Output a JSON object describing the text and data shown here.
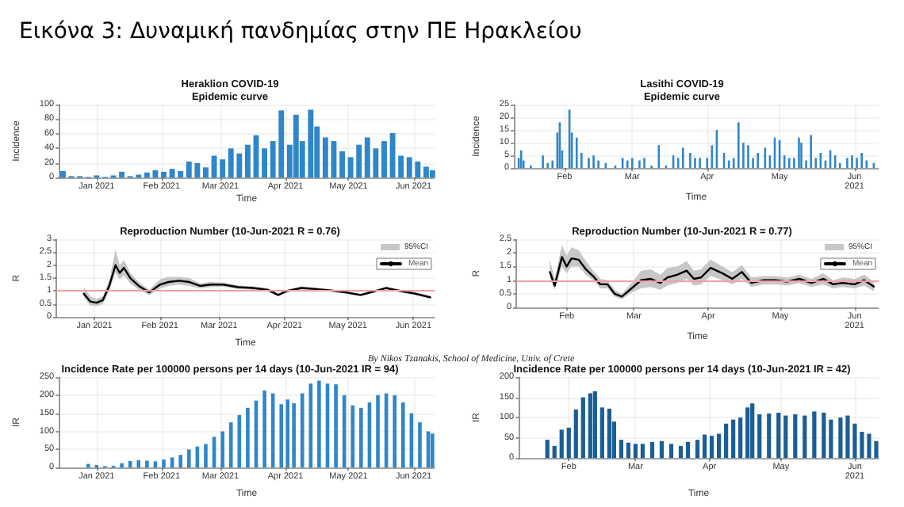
{
  "chart_data": [
    {
      "type": "other",
      "title": "Εικόνα 3: Δυναμική πανδημίας στην ΠΕ Ηρακλείου",
      "annotations": [
        "By Nikos Tzanakis, School of Medicine, Univ. of Crete"
      ]
    },
    {
      "type": "bar",
      "title": "Heraklion COVID-19",
      "subtitle": "Epidemic curve",
      "xlabel": "Time",
      "ylabel": "Incidence",
      "grid": true,
      "color": "#2f86c8",
      "x": [
        "2020-12-16",
        "2020-12-20",
        "2020-12-24",
        "2020-12-28",
        "2021-01-01",
        "2021-01-05",
        "2021-01-09",
        "2021-01-13",
        "2021-01-17",
        "2021-01-21",
        "2021-01-25",
        "2021-01-29",
        "2021-02-02",
        "2021-02-06",
        "2021-02-10",
        "2021-02-14",
        "2021-02-18",
        "2021-02-22",
        "2021-02-26",
        "2021-03-02",
        "2021-03-06",
        "2021-03-10",
        "2021-03-14",
        "2021-03-18",
        "2021-03-22",
        "2021-03-26",
        "2021-03-30",
        "2021-04-03",
        "2021-04-06",
        "2021-04-09",
        "2021-04-13",
        "2021-04-16",
        "2021-04-20",
        "2021-04-24",
        "2021-04-28",
        "2021-05-02",
        "2021-05-06",
        "2021-05-10",
        "2021-05-14",
        "2021-05-18",
        "2021-05-22",
        "2021-05-26",
        "2021-05-30",
        "2021-06-03",
        "2021-06-07",
        "2021-06-10"
      ],
      "values": [
        9,
        2,
        2,
        1,
        3,
        1,
        3,
        8,
        2,
        4,
        7,
        10,
        8,
        12,
        9,
        22,
        20,
        14,
        30,
        25,
        40,
        33,
        45,
        58,
        40,
        50,
        92,
        45,
        86,
        50,
        93,
        70,
        55,
        50,
        36,
        28,
        45,
        55,
        40,
        50,
        61,
        30,
        28,
        22,
        15,
        10
      ],
      "xlim": [
        "2020-12-14",
        "2021-06-11"
      ],
      "xticks": [
        {
          "value": "2021-01-01",
          "label": "Jan 2021"
        },
        {
          "value": "2021-02-01",
          "label": "Feb 2021"
        },
        {
          "value": "2021-03-01",
          "label": "Mar 2021"
        },
        {
          "value": "2021-04-01",
          "label": "Apr 2021"
        },
        {
          "value": "2021-05-01",
          "label": "May 2021"
        },
        {
          "value": "2021-06-01",
          "label": "Jun 2021"
        }
      ],
      "ylim": [
        0,
        100
      ],
      "yticks": [
        0,
        20,
        40,
        60,
        80,
        100
      ]
    },
    {
      "type": "bar",
      "title": "Lasithi COVID-19",
      "subtitle": "Epidemic curve",
      "xlabel": "Time",
      "ylabel": "Incidence",
      "grid": true,
      "color": "#2f86c8",
      "x": [
        "2021-01-13",
        "2021-01-14",
        "2021-01-15",
        "2021-01-18",
        "2021-01-23",
        "2021-01-25",
        "2021-01-27",
        "2021-01-29",
        "2021-01-30",
        "2021-01-31",
        "2021-02-03",
        "2021-02-04",
        "2021-02-06",
        "2021-02-08",
        "2021-02-11",
        "2021-02-13",
        "2021-02-15",
        "2021-02-18",
        "2021-02-22",
        "2021-02-25",
        "2021-02-27",
        "2021-03-01",
        "2021-03-04",
        "2021-03-06",
        "2021-03-09",
        "2021-03-12",
        "2021-03-15",
        "2021-03-18",
        "2021-03-20",
        "2021-03-22",
        "2021-03-25",
        "2021-03-27",
        "2021-03-29",
        "2021-04-01",
        "2021-04-03",
        "2021-04-05",
        "2021-04-08",
        "2021-04-10",
        "2021-04-12",
        "2021-04-14",
        "2021-04-16",
        "2021-04-18",
        "2021-04-20",
        "2021-04-22",
        "2021-04-25",
        "2021-04-27",
        "2021-04-29",
        "2021-05-01",
        "2021-05-03",
        "2021-05-05",
        "2021-05-07",
        "2021-05-09",
        "2021-05-10",
        "2021-05-12",
        "2021-05-14",
        "2021-05-16",
        "2021-05-18",
        "2021-05-20",
        "2021-05-22",
        "2021-05-24",
        "2021-05-26",
        "2021-05-29",
        "2021-05-31",
        "2021-06-02",
        "2021-06-04",
        "2021-06-06",
        "2021-06-09"
      ],
      "values": [
        4,
        7,
        3,
        1,
        5,
        2,
        3,
        14,
        18,
        7,
        23,
        14,
        12,
        6,
        4,
        5,
        3,
        2,
        1,
        4,
        3,
        4,
        3,
        4,
        1,
        9,
        1,
        5,
        4,
        8,
        6,
        4,
        4,
        4,
        9,
        15,
        6,
        3,
        4,
        18,
        10,
        9,
        4,
        6,
        8,
        5,
        12,
        11,
        5,
        4,
        4,
        12,
        10,
        3,
        13,
        4,
        6,
        3,
        7,
        5,
        2,
        4,
        5,
        4,
        6,
        3,
        2
      ],
      "xlim": [
        "2021-01-11",
        "2021-06-11"
      ],
      "xticks": [
        {
          "value": "2021-02-01",
          "label": "Feb"
        },
        {
          "value": "2021-03-01",
          "label": "Mar"
        },
        {
          "value": "2021-04-01",
          "label": "Apr"
        },
        {
          "value": "2021-05-01",
          "label": "May"
        },
        {
          "value": "2021-06-01",
          "label": "Jun\n2021"
        }
      ],
      "ylim": [
        0,
        25
      ],
      "yticks": [
        0,
        5,
        10,
        15,
        20,
        25
      ]
    },
    {
      "type": "line",
      "title": "Reproduction Number (10-Jun-2021 R = 0.76)",
      "annotations": [
        "95%CI"
      ],
      "xlabel": "Time",
      "ylabel": "R",
      "grid": true,
      "legend": "top right",
      "marker": "none",
      "line_style": "solid",
      "x": [
        "2020-12-27",
        "2020-12-30",
        "2021-01-02",
        "2021-01-05",
        "2021-01-08",
        "2021-01-11",
        "2021-01-13",
        "2021-01-15",
        "2021-01-18",
        "2021-01-22",
        "2021-01-27",
        "2021-02-01",
        "2021-02-05",
        "2021-02-10",
        "2021-02-15",
        "2021-02-20",
        "2021-02-25",
        "2021-03-03",
        "2021-03-10",
        "2021-03-17",
        "2021-03-24",
        "2021-03-29",
        "2021-04-02",
        "2021-04-09",
        "2021-04-16",
        "2021-04-23",
        "2021-04-30",
        "2021-05-07",
        "2021-05-14",
        "2021-05-19",
        "2021-05-26",
        "2021-06-02",
        "2021-06-09"
      ],
      "series": [
        {
          "name": "Mean",
          "type": "line",
          "color": "#000000",
          "values": [
            0.9,
            0.6,
            0.55,
            0.65,
            1.2,
            2.0,
            1.7,
            1.9,
            1.5,
            1.2,
            0.95,
            1.25,
            1.35,
            1.4,
            1.35,
            1.2,
            1.25,
            1.25,
            1.15,
            1.12,
            1.05,
            0.85,
            1.0,
            1.12,
            1.08,
            1.02,
            0.95,
            0.85,
            1.0,
            1.12,
            1.0,
            0.9,
            0.76
          ],
          "lower": [
            0.75,
            0.45,
            0.42,
            0.5,
            1.0,
            1.7,
            1.45,
            1.6,
            1.3,
            1.05,
            0.85,
            1.1,
            1.2,
            1.25,
            1.2,
            1.1,
            1.15,
            1.17,
            1.08,
            1.05,
            0.98,
            0.8,
            0.94,
            1.06,
            1.03,
            0.97,
            0.9,
            0.8,
            0.96,
            1.07,
            0.95,
            0.85,
            0.7
          ],
          "upper": [
            1.15,
            0.8,
            0.7,
            0.8,
            1.4,
            2.6,
            2.0,
            2.2,
            1.7,
            1.35,
            1.05,
            1.45,
            1.55,
            1.55,
            1.5,
            1.3,
            1.35,
            1.33,
            1.22,
            1.18,
            1.12,
            0.9,
            1.06,
            1.18,
            1.13,
            1.07,
            1.0,
            0.9,
            1.05,
            1.17,
            1.05,
            0.95,
            0.82
          ]
        }
      ],
      "ref_lines": [
        {
          "axis": "y",
          "value": 1,
          "color": "#f4a0a0"
        }
      ],
      "xlim": [
        "2020-12-14",
        "2021-06-11"
      ],
      "xticks": [
        {
          "value": "2021-01-01",
          "label": "Jan 2021"
        },
        {
          "value": "2021-02-01",
          "label": "Feb 2021"
        },
        {
          "value": "2021-03-01",
          "label": "Mar 2021"
        },
        {
          "value": "2021-04-01",
          "label": "Apr 2021"
        },
        {
          "value": "2021-05-01",
          "label": "May 2021"
        },
        {
          "value": "2021-06-01",
          "label": "Jun 2021"
        }
      ],
      "ylim": [
        0,
        3
      ],
      "yticks": [
        0,
        0.5,
        1,
        1.5,
        2,
        2.5,
        3
      ]
    },
    {
      "type": "line",
      "title": "Reproduction Number (10-Jun-2021 R = 0.77)",
      "annotations": [
        "95%CI"
      ],
      "xlabel": "Time",
      "ylabel": "R",
      "grid": true,
      "legend": "top right",
      "marker": "none",
      "line_style": "solid",
      "x": [
        "2021-01-25",
        "2021-01-27",
        "2021-01-30",
        "2021-02-01",
        "2021-02-03",
        "2021-02-06",
        "2021-02-09",
        "2021-02-12",
        "2021-02-15",
        "2021-02-18",
        "2021-02-21",
        "2021-02-24",
        "2021-02-28",
        "2021-03-04",
        "2021-03-08",
        "2021-03-12",
        "2021-03-15",
        "2021-03-19",
        "2021-03-23",
        "2021-03-26",
        "2021-03-29",
        "2021-04-02",
        "2021-04-07",
        "2021-04-11",
        "2021-04-15",
        "2021-04-19",
        "2021-04-24",
        "2021-04-29",
        "2021-05-04",
        "2021-05-09",
        "2021-05-14",
        "2021-05-19",
        "2021-05-23",
        "2021-05-27",
        "2021-06-01",
        "2021-06-05",
        "2021-06-09"
      ],
      "series": [
        {
          "name": "Mean",
          "type": "line",
          "color": "#000000",
          "values": [
            1.3,
            0.8,
            1.85,
            1.5,
            1.8,
            1.75,
            1.4,
            1.15,
            0.85,
            0.85,
            0.5,
            0.4,
            0.7,
            1.0,
            1.05,
            0.9,
            1.1,
            1.2,
            1.35,
            1.05,
            1.1,
            1.45,
            1.25,
            1.05,
            1.3,
            0.9,
            1.0,
            1.0,
            0.95,
            1.05,
            0.9,
            1.05,
            0.85,
            0.9,
            0.85,
            1.0,
            0.77
          ],
          "lower": [
            1.1,
            0.65,
            1.5,
            1.25,
            1.5,
            1.5,
            1.2,
            1.0,
            0.7,
            0.7,
            0.4,
            0.3,
            0.55,
            0.7,
            0.75,
            0.65,
            0.8,
            0.9,
            1.05,
            0.8,
            0.85,
            1.15,
            1.0,
            0.85,
            1.05,
            0.75,
            0.85,
            0.85,
            0.8,
            0.9,
            0.75,
            0.85,
            0.7,
            0.75,
            0.7,
            0.8,
            0.6
          ],
          "upper": [
            1.75,
            1.05,
            2.3,
            1.9,
            2.2,
            2.1,
            1.7,
            1.35,
            1.05,
            1.0,
            0.65,
            0.5,
            0.9,
            1.35,
            1.4,
            1.2,
            1.45,
            1.5,
            1.7,
            1.35,
            1.4,
            1.75,
            1.5,
            1.3,
            1.55,
            1.1,
            1.15,
            1.15,
            1.1,
            1.2,
            1.05,
            1.25,
            1.0,
            1.1,
            1.05,
            1.2,
            0.95
          ]
        }
      ],
      "ref_lines": [
        {
          "axis": "y",
          "value": 1,
          "color": "#f4a0a0"
        }
      ],
      "xlim": [
        "2021-01-11",
        "2021-06-11"
      ],
      "xticks": [
        {
          "value": "2021-02-01",
          "label": "Feb"
        },
        {
          "value": "2021-03-01",
          "label": "Mar"
        },
        {
          "value": "2021-04-01",
          "label": "Apr"
        },
        {
          "value": "2021-05-01",
          "label": "May"
        },
        {
          "value": "2021-06-01",
          "label": "Jun\n2021"
        }
      ],
      "ylim": [
        0,
        2.5
      ],
      "yticks": [
        0,
        0.5,
        1,
        1.5,
        2,
        2.5
      ]
    },
    {
      "type": "bar",
      "title": "Incidence Rate per 100000 persons per 14 days (10-Jun-2021 IR = 94)",
      "xlabel": "Time",
      "ylabel": "IR",
      "grid": true,
      "color": "#2f86c8",
      "x": [
        "2020-12-28",
        "2021-01-01",
        "2021-01-05",
        "2021-01-09",
        "2021-01-13",
        "2021-01-17",
        "2021-01-21",
        "2021-01-25",
        "2021-01-29",
        "2021-02-02",
        "2021-02-06",
        "2021-02-10",
        "2021-02-14",
        "2021-02-18",
        "2021-02-22",
        "2021-02-26",
        "2021-03-02",
        "2021-03-06",
        "2021-03-10",
        "2021-03-14",
        "2021-03-18",
        "2021-03-22",
        "2021-03-26",
        "2021-03-30",
        "2021-04-02",
        "2021-04-05",
        "2021-04-09",
        "2021-04-13",
        "2021-04-17",
        "2021-04-21",
        "2021-04-25",
        "2021-04-29",
        "2021-05-03",
        "2021-05-07",
        "2021-05-11",
        "2021-05-15",
        "2021-05-19",
        "2021-05-23",
        "2021-05-27",
        "2021-05-31",
        "2021-06-04",
        "2021-06-08",
        "2021-06-10"
      ],
      "values": [
        10,
        7,
        4,
        5,
        12,
        18,
        20,
        19,
        17,
        22,
        28,
        35,
        50,
        58,
        65,
        85,
        100,
        125,
        145,
        165,
        185,
        213,
        205,
        175,
        188,
        178,
        205,
        232,
        240,
        232,
        230,
        200,
        172,
        165,
        180,
        200,
        205,
        200,
        180,
        150,
        125,
        100,
        94
      ],
      "xlim": [
        "2020-12-14",
        "2021-06-11"
      ],
      "xticks": [
        {
          "value": "2021-01-01",
          "label": "Jan 2021"
        },
        {
          "value": "2021-02-01",
          "label": "Feb 2021"
        },
        {
          "value": "2021-03-01",
          "label": "Mar 2021"
        },
        {
          "value": "2021-04-01",
          "label": "Apr 2021"
        },
        {
          "value": "2021-05-01",
          "label": "May 2021"
        },
        {
          "value": "2021-06-01",
          "label": "Jun 2021"
        }
      ],
      "ylim": [
        0,
        250
      ],
      "yticks": [
        0,
        50,
        100,
        150,
        200,
        250
      ]
    },
    {
      "type": "bar",
      "title": "Incidence Rate per 100000 persons per 14 days (10-Jun-2021 IR = 42)",
      "xlabel": "Time",
      "ylabel": "IR",
      "grid": true,
      "color": "#1b5e96",
      "x": [
        "2021-01-23",
        "2021-01-26",
        "2021-01-29",
        "2021-02-01",
        "2021-02-04",
        "2021-02-07",
        "2021-02-10",
        "2021-02-12",
        "2021-02-15",
        "2021-02-18",
        "2021-02-20",
        "2021-02-23",
        "2021-02-26",
        "2021-03-01",
        "2021-03-04",
        "2021-03-08",
        "2021-03-12",
        "2021-03-16",
        "2021-03-20",
        "2021-03-23",
        "2021-03-27",
        "2021-03-30",
        "2021-04-02",
        "2021-04-05",
        "2021-04-08",
        "2021-04-11",
        "2021-04-14",
        "2021-04-17",
        "2021-04-19",
        "2021-04-22",
        "2021-04-26",
        "2021-04-30",
        "2021-05-03",
        "2021-05-07",
        "2021-05-11",
        "2021-05-15",
        "2021-05-19",
        "2021-05-22",
        "2021-05-26",
        "2021-05-29",
        "2021-06-01",
        "2021-06-04",
        "2021-06-07",
        "2021-06-10"
      ],
      "values": [
        45,
        30,
        70,
        75,
        120,
        150,
        160,
        165,
        125,
        122,
        90,
        45,
        38,
        35,
        35,
        40,
        42,
        35,
        30,
        40,
        45,
        58,
        55,
        60,
        85,
        95,
        100,
        125,
        135,
        108,
        110,
        112,
        105,
        108,
        105,
        115,
        112,
        95,
        100,
        105,
        85,
        65,
        60,
        42
      ],
      "xlim": [
        "2021-01-11",
        "2021-06-11"
      ],
      "xticks": [
        {
          "value": "2021-02-01",
          "label": "Feb"
        },
        {
          "value": "2021-03-01",
          "label": "Mar"
        },
        {
          "value": "2021-04-01",
          "label": "Apr"
        },
        {
          "value": "2021-05-01",
          "label": "May"
        },
        {
          "value": "2021-06-01",
          "label": "Jun\n2021"
        }
      ],
      "ylim": [
        0,
        200
      ],
      "yticks": [
        0,
        50,
        100,
        150,
        200
      ]
    }
  ]
}
